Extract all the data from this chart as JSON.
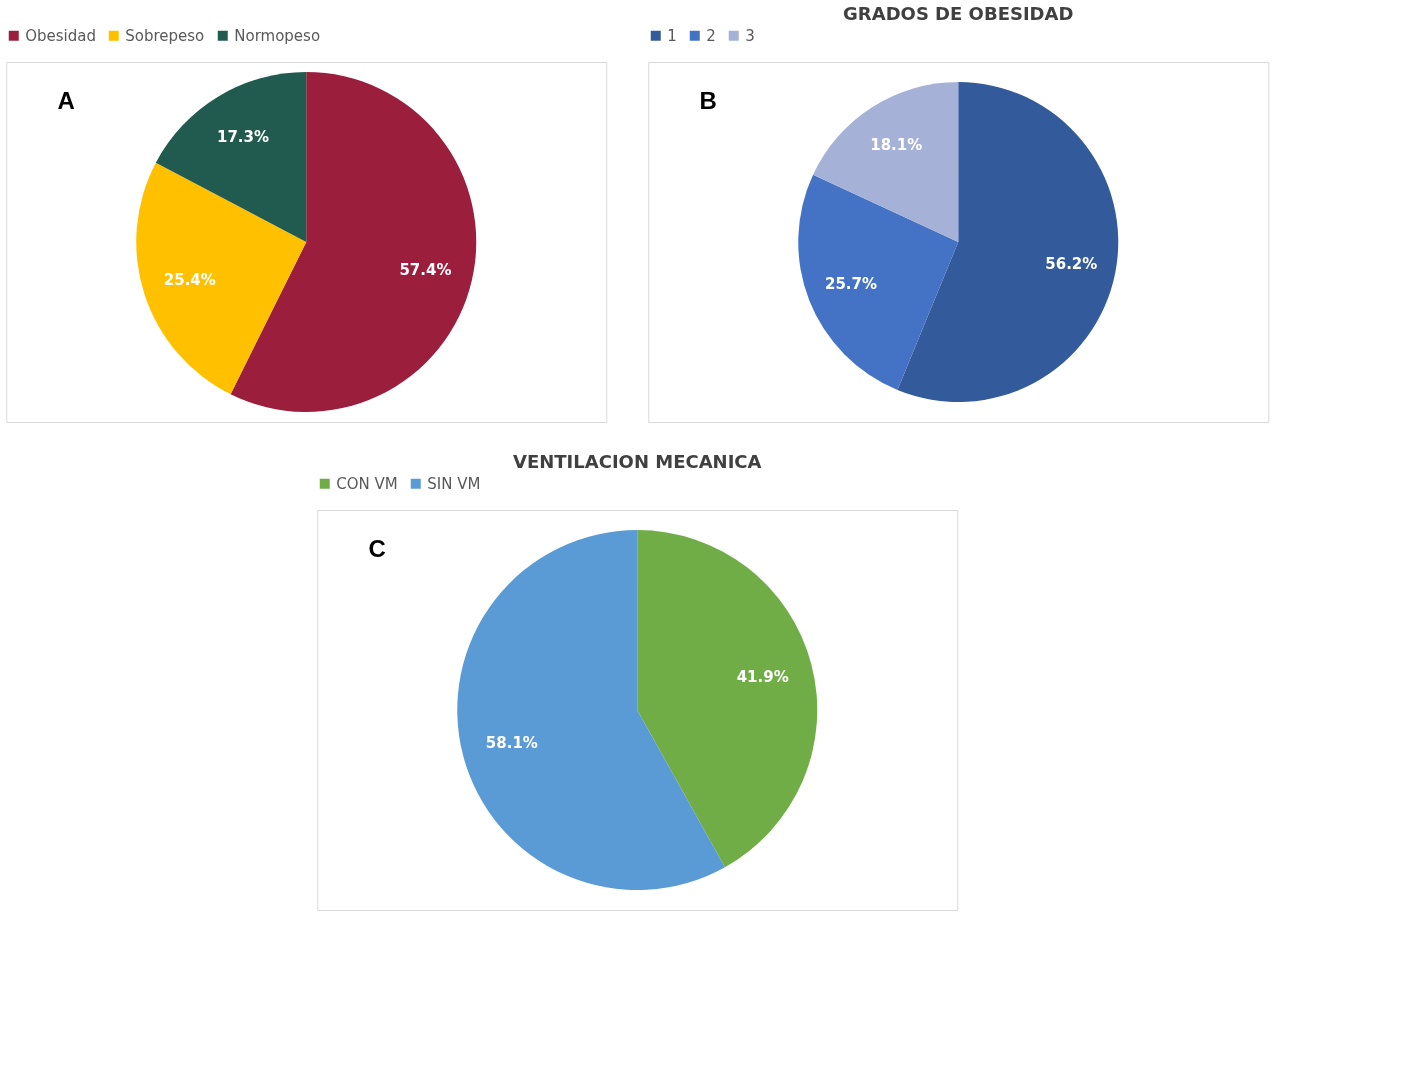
{
  "chart_data": [
    {
      "type": "pie",
      "categories": [
        "Obesidad",
        "Sobrepeso",
        "Normopeso"
      ],
      "values": [
        57.4,
        25.4,
        17.3
      ],
      "colors": [
        "#9b1e3c",
        "#ffc000",
        "#215a4e"
      ],
      "value_labels": [
        "57.4%",
        "25.4%",
        "17.3%"
      ],
      "legend": "top",
      "annotations": [
        "A"
      ]
    },
    {
      "type": "pie",
      "title": "GRADOS DE OBESIDAD",
      "categories": [
        "1",
        "2",
        "3"
      ],
      "values": [
        56.2,
        25.7,
        18.1
      ],
      "colors": [
        "#335a9a",
        "#4472c4",
        "#a5b1d6"
      ],
      "value_labels": [
        "56.2%",
        "25.7%",
        "18.1%"
      ],
      "legend": "top",
      "annotations": [
        "B"
      ]
    },
    {
      "type": "pie",
      "title": "VENTILACION MECANICA",
      "categories": [
        "CON VM",
        "SIN VM"
      ],
      "values": [
        41.9,
        58.1
      ],
      "colors": [
        "#70ad47",
        "#5b9bd5"
      ],
      "value_labels": [
        "41.9%",
        "58.1%"
      ],
      "legend": "top",
      "annotations": [
        "C"
      ]
    }
  ]
}
